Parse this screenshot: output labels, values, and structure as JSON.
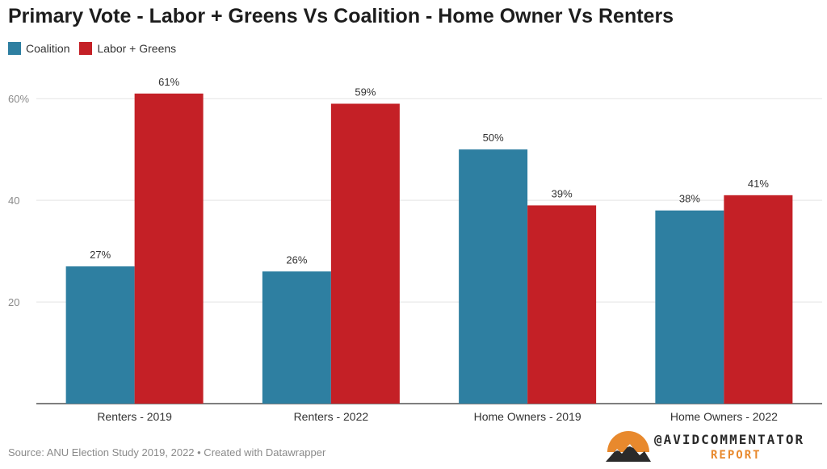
{
  "chart_data": {
    "type": "bar",
    "title": "Primary Vote - Labor + Greens Vs Coalition - Home Owner Vs Renters",
    "categories": [
      "Renters - 2019",
      "Renters - 2022",
      "Home Owners - 2019",
      "Home Owners - 2022"
    ],
    "series": [
      {
        "name": "Coalition",
        "values": [
          27,
          26,
          50,
          38
        ],
        "labels": [
          "27%",
          "26%",
          "50%",
          "38%"
        ],
        "color": "#2e7fa1"
      },
      {
        "name": "Labor + Greens",
        "values": [
          61,
          59,
          39,
          41
        ],
        "labels": [
          "61%",
          "59%",
          "39%",
          "41%"
        ],
        "color": "#c42026"
      }
    ],
    "yticks": [
      {
        "value": 20,
        "label": "20"
      },
      {
        "value": 40,
        "label": "40"
      },
      {
        "value": 60,
        "label": "60%"
      }
    ],
    "ylim": [
      0,
      64
    ],
    "grid": true,
    "legend": "top-left",
    "xlabel": "",
    "ylabel": ""
  },
  "source": "Source: ANU Election Study 2019, 2022 • Created with Datawrapper",
  "brand": {
    "name": "@AVIDCOMMENTATOR",
    "sub": "REPORT",
    "logo_icon": "sunset-mountain-icon",
    "logo_colors": [
      "#e8892d",
      "#2a2a2a"
    ]
  }
}
